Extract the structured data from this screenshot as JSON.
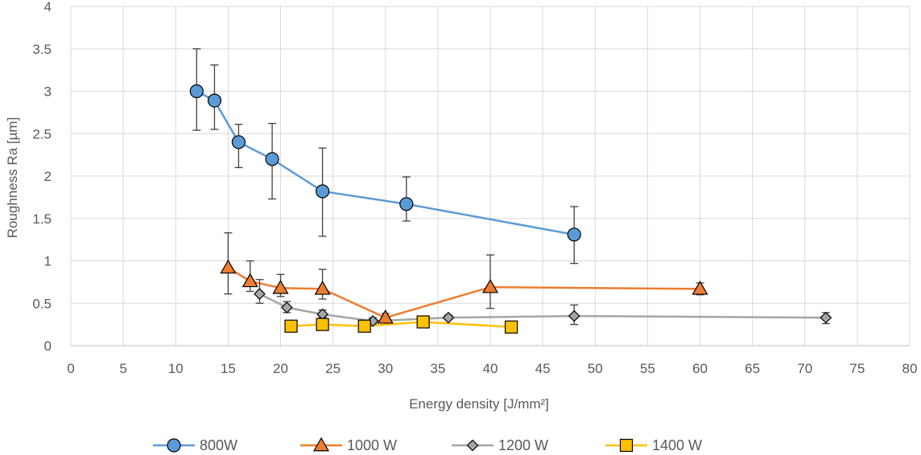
{
  "chart_data": {
    "type": "scatter",
    "xlabel": "Energy density [J/mm²]",
    "ylabel": "Roughness Ra [µm]",
    "xlim": [
      0,
      80
    ],
    "ylim": [
      0,
      4
    ],
    "x_ticks": [
      0,
      5,
      10,
      15,
      20,
      25,
      30,
      35,
      40,
      45,
      50,
      55,
      60,
      65,
      70,
      75,
      80
    ],
    "y_ticks": [
      0,
      0.5,
      1,
      1.5,
      2,
      2.5,
      3,
      3.5,
      4
    ],
    "y_tick_labels": [
      "0",
      "0.5",
      "1",
      "1.5",
      "2",
      "2.5",
      "3",
      "3.5",
      "4"
    ],
    "grid": true,
    "legend_position": "bottom",
    "series": [
      {
        "name": "800W",
        "marker": "circle",
        "color": "#5B9BD5",
        "line_color": "#5B9BD5",
        "points": [
          {
            "x": 12,
            "y": 3.0,
            "err_low": 2.54,
            "err_high": 3.5
          },
          {
            "x": 13.7,
            "y": 2.89,
            "err_low": 2.55,
            "err_high": 3.31
          },
          {
            "x": 16,
            "y": 2.4,
            "err_low": 2.1,
            "err_high": 2.61
          },
          {
            "x": 19.2,
            "y": 2.2,
            "err_low": 1.73,
            "err_high": 2.62
          },
          {
            "x": 24,
            "y": 1.82,
            "err_low": 1.29,
            "err_high": 2.33
          },
          {
            "x": 32,
            "y": 1.67,
            "err_low": 1.47,
            "err_high": 1.99
          },
          {
            "x": 48,
            "y": 1.31,
            "err_low": 0.97,
            "err_high": 1.64
          }
        ]
      },
      {
        "name": "1000 W",
        "marker": "triangle",
        "color": "#ED7D31",
        "line_color": "#ED7D31",
        "points": [
          {
            "x": 15,
            "y": 0.92,
            "err_low": 0.61,
            "err_high": 1.33
          },
          {
            "x": 17.1,
            "y": 0.76,
            "err_low": 0.64,
            "err_high": 1.0
          },
          {
            "x": 20,
            "y": 0.68,
            "err_low": 0.58,
            "err_high": 0.84
          },
          {
            "x": 24,
            "y": 0.67,
            "err_low": 0.55,
            "err_high": 0.9
          },
          {
            "x": 30,
            "y": 0.33,
            "err_low": 0.28,
            "err_high": 0.38
          },
          {
            "x": 40,
            "y": 0.69,
            "err_low": 0.44,
            "err_high": 1.07
          },
          {
            "x": 60,
            "y": 0.67,
            "err_low": 0.6,
            "err_high": 0.74
          }
        ]
      },
      {
        "name": "1200 W",
        "marker": "diamond",
        "color": "#A5A5A5",
        "line_color": "#A5A5A5",
        "points": [
          {
            "x": 18,
            "y": 0.61,
            "err_low": 0.5,
            "err_high": 0.78
          },
          {
            "x": 20.6,
            "y": 0.45,
            "err_low": 0.39,
            "err_high": 0.52
          },
          {
            "x": 24,
            "y": 0.37,
            "err_low": 0.33,
            "err_high": 0.42
          },
          {
            "x": 28.8,
            "y": 0.29,
            "err_low": 0.26,
            "err_high": 0.33
          },
          {
            "x": 36,
            "y": 0.33,
            "err_low": 0.31,
            "err_high": 0.36
          },
          {
            "x": 48,
            "y": 0.35,
            "err_low": 0.25,
            "err_high": 0.48
          },
          {
            "x": 72,
            "y": 0.33,
            "err_low": 0.26,
            "err_high": 0.39
          }
        ]
      },
      {
        "name": "1400 W",
        "marker": "square",
        "color": "#FFC000",
        "line_color": "#FFC000",
        "points": [
          {
            "x": 21,
            "y": 0.23
          },
          {
            "x": 24,
            "y": 0.25
          },
          {
            "x": 28,
            "y": 0.23
          },
          {
            "x": 33.6,
            "y": 0.28
          },
          {
            "x": 42,
            "y": 0.22
          }
        ]
      }
    ]
  }
}
